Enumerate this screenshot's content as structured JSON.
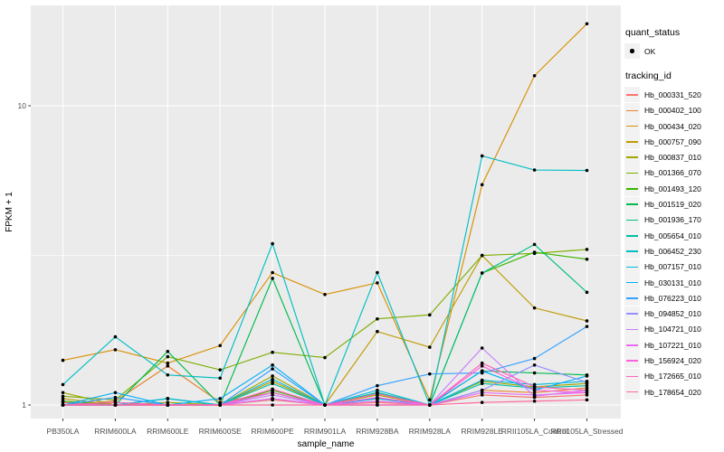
{
  "figure": {
    "background": "#FFFFFF",
    "panel_background": "#EBEBEB",
    "gridline_color": "#FFFFFF",
    "tick_color": "#333333",
    "axis_text_color": "#4D4D4D",
    "axis_title_color": "#000000",
    "point_color": "#000000",
    "legend_key_background": "#F2F2F2"
  },
  "legend": {
    "quant_status_title": "quant_status",
    "quant_status_items": [
      "OK"
    ],
    "tracking_id_title": "tracking_id"
  },
  "chart_data": {
    "type": "line",
    "title": "",
    "xlabel": "sample_name",
    "ylabel": "FPKM + 1",
    "y_scale": "log10",
    "ylim": [
      0.9,
      21.7
    ],
    "grid": "major-white-minor-white",
    "legend_position": "right",
    "point_marker": "small black dot on every data point",
    "y_ticks": [
      {
        "label": "10",
        "value": 10
      },
      {
        "label": "1",
        "value": 1
      }
    ],
    "y_minor_ticks": [
      3.162
    ],
    "categories": [
      "PB350LA",
      "RRIM600LA",
      "RRIM600LE",
      "RRIM600SE",
      "RRIM600PE",
      "RRIM901LA",
      "RRIM928BA",
      "RRIM928LA",
      "RRIM928LE",
      "RRII105LA_Control",
      "RRII105LA_Stressed"
    ],
    "series": [
      {
        "name": "Hb_000331_520",
        "color": "#F8766D",
        "values": [
          1.02,
          1.0,
          1.0,
          1.0,
          1.04,
          1.0,
          1.02,
          1.0,
          1.08,
          1.06,
          1.08
        ]
      },
      {
        "name": "Hb_000402_100",
        "color": "#EA8331",
        "values": [
          1.0,
          1.03,
          1.35,
          1.02,
          1.1,
          1.0,
          1.05,
          1.0,
          1.12,
          1.1,
          1.14
        ]
      },
      {
        "name": "Hb_000434_020",
        "color": "#D89000",
        "values": [
          1.41,
          1.53,
          1.38,
          1.58,
          2.77,
          2.34,
          2.56,
          1.04,
          5.45,
          12.6,
          18.8
        ]
      },
      {
        "name": "Hb_000757_090",
        "color": "#C09B00",
        "values": [
          1.05,
          1.0,
          1.0,
          1.0,
          1.2,
          1.0,
          1.76,
          1.56,
          3.16,
          2.11,
          1.91
        ]
      },
      {
        "name": "Hb_000837_010",
        "color": "#A3A500",
        "values": [
          1.1,
          1.0,
          1.02,
          1.0,
          1.25,
          1.0,
          1.08,
          1.0,
          1.2,
          1.15,
          1.18
        ]
      },
      {
        "name": "Hb_001366_070",
        "color": "#7CAE00",
        "values": [
          1.07,
          1.04,
          1.45,
          1.31,
          1.5,
          1.44,
          1.94,
          2.0,
          3.16,
          3.21,
          3.31
        ]
      },
      {
        "name": "Hb_001493_120",
        "color": "#39B600",
        "values": [
          1.03,
          1.0,
          1.05,
          1.0,
          1.12,
          1.0,
          1.1,
          1.0,
          2.76,
          3.24,
          3.07
        ]
      },
      {
        "name": "Hb_001519_020",
        "color": "#00BB4E",
        "values": [
          1.0,
          1.0,
          1.51,
          1.0,
          2.65,
          1.0,
          1.05,
          1.0,
          1.3,
          1.28,
          1.26
        ]
      },
      {
        "name": "Hb_001936_170",
        "color": "#00BF7D",
        "values": [
          1.0,
          1.0,
          1.0,
          1.0,
          1.1,
          1.0,
          1.1,
          1.0,
          2.76,
          3.44,
          2.38
        ]
      },
      {
        "name": "Hb_005654_010",
        "color": "#00C1A3",
        "values": [
          1.0,
          1.0,
          1.05,
          1.0,
          1.18,
          1.0,
          1.1,
          1.0,
          1.18,
          1.14,
          1.16
        ]
      },
      {
        "name": "Hb_006452_230",
        "color": "#00BFC4",
        "values": [
          1.17,
          1.69,
          1.26,
          1.23,
          3.46,
          1.0,
          2.77,
          1.0,
          6.8,
          6.1,
          6.08
        ]
      },
      {
        "name": "Hb_007157_010",
        "color": "#00BAE0",
        "values": [
          1.0,
          1.0,
          1.05,
          1.0,
          1.22,
          1.0,
          1.12,
          1.0,
          1.21,
          1.17,
          1.2
        ]
      },
      {
        "name": "Hb_030131_010",
        "color": "#00B0F6",
        "values": [
          1.0,
          1.1,
          1.0,
          1.05,
          1.36,
          1.0,
          1.05,
          1.0,
          1.3,
          1.12,
          1.25
        ]
      },
      {
        "name": "Hb_076223_010",
        "color": "#35A2FF",
        "values": [
          1.0,
          1.06,
          1.0,
          1.0,
          1.32,
          1.0,
          1.16,
          1.27,
          1.28,
          1.43,
          1.83
        ]
      },
      {
        "name": "Hb_094852_010",
        "color": "#9590FF",
        "values": [
          1.0,
          1.0,
          1.0,
          1.0,
          1.05,
          1.0,
          1.0,
          1.0,
          1.12,
          1.36,
          1.19
        ]
      },
      {
        "name": "Hb_104721_010",
        "color": "#C77CFF",
        "values": [
          1.0,
          1.0,
          1.0,
          1.0,
          1.08,
          1.0,
          1.0,
          1.0,
          1.55,
          1.07,
          1.12
        ]
      },
      {
        "name": "Hb_107221_010",
        "color": "#E76BF3",
        "values": [
          1.0,
          1.0,
          1.0,
          1.0,
          1.05,
          1.0,
          1.03,
          1.0,
          1.1,
          1.08,
          1.1
        ]
      },
      {
        "name": "Hb_156924_020",
        "color": "#FA62DB",
        "values": [
          1.0,
          1.0,
          1.0,
          1.0,
          1.1,
          1.0,
          1.06,
          1.0,
          1.35,
          1.12,
          1.1
        ]
      },
      {
        "name": "Hb_172665_010",
        "color": "#FF62BC",
        "values": [
          1.0,
          1.02,
          1.0,
          1.0,
          1.13,
          1.0,
          1.09,
          1.0,
          1.38,
          1.15,
          1.12
        ]
      },
      {
        "name": "Hb_178654_020",
        "color": "#FF6A98",
        "values": [
          1.0,
          1.0,
          1.0,
          1.0,
          1.0,
          1.0,
          1.0,
          1.0,
          1.02,
          1.03,
          1.04
        ]
      }
    ]
  }
}
